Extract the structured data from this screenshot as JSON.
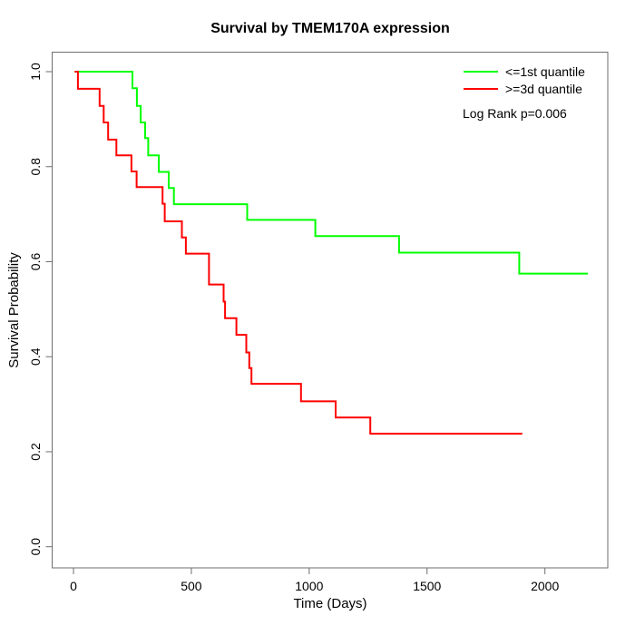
{
  "chart_data": {
    "type": "line",
    "subtype": "kaplan-meier-step",
    "title": "Survival by TMEM170A expression",
    "xlabel": "Time (Days)",
    "ylabel": "Survival Probability",
    "xlim": [
      0,
      2270
    ],
    "ylim": [
      0.0,
      1.0
    ],
    "grid": "off",
    "legend_position": "top-right",
    "annotation": "Log Rank p=0.006",
    "x_ticks": [
      {
        "value": 0,
        "label": "0"
      },
      {
        "value": 500,
        "label": "500"
      },
      {
        "value": 1000,
        "label": "1000"
      },
      {
        "value": 1500,
        "label": "1500"
      },
      {
        "value": 2000,
        "label": "2000"
      }
    ],
    "y_ticks": [
      {
        "value": 0.0,
        "label": "0.0"
      },
      {
        "value": 0.2,
        "label": "0.2"
      },
      {
        "value": 0.4,
        "label": "0.4"
      },
      {
        "value": 0.6,
        "label": "0.6"
      },
      {
        "value": 0.8,
        "label": "0.8"
      },
      {
        "value": 1.0,
        "label": "1.0"
      }
    ],
    "series": [
      {
        "name": "<=1st quantile",
        "color": "#00ff00",
        "end_time": 2182,
        "points": [
          [
            5,
            1.0
          ],
          [
            250,
            0.965
          ],
          [
            269,
            0.928
          ],
          [
            285,
            0.893
          ],
          [
            304,
            0.86
          ],
          [
            317,
            0.824
          ],
          [
            362,
            0.789
          ],
          [
            404,
            0.755
          ],
          [
            426,
            0.721
          ],
          [
            737,
            0.688
          ],
          [
            1026,
            0.654
          ],
          [
            1381,
            0.619
          ],
          [
            1891,
            0.575
          ]
        ]
      },
      {
        "name": ">=3d quantile",
        "color": "#ff0000",
        "end_time": 1904,
        "points": [
          [
            5,
            1.0
          ],
          [
            19,
            0.964
          ],
          [
            111,
            0.928
          ],
          [
            128,
            0.893
          ],
          [
            147,
            0.857
          ],
          [
            182,
            0.824
          ],
          [
            246,
            0.79
          ],
          [
            268,
            0.757
          ],
          [
            378,
            0.722
          ],
          [
            387,
            0.685
          ],
          [
            460,
            0.651
          ],
          [
            477,
            0.617
          ],
          [
            575,
            0.552
          ],
          [
            637,
            0.516
          ],
          [
            643,
            0.481
          ],
          [
            691,
            0.446
          ],
          [
            733,
            0.409
          ],
          [
            746,
            0.376
          ],
          [
            755,
            0.343
          ],
          [
            965,
            0.306
          ],
          [
            1112,
            0.272
          ],
          [
            1259,
            0.238
          ]
        ]
      }
    ]
  }
}
